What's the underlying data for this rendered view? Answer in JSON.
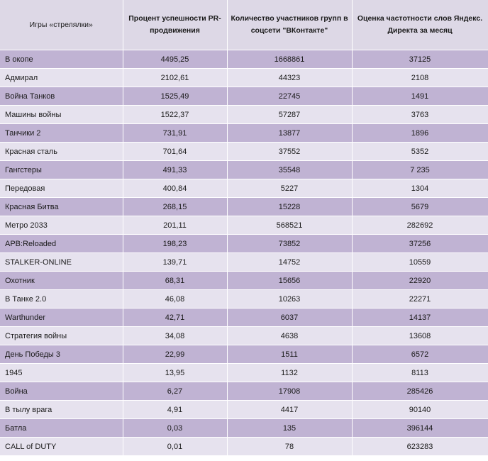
{
  "table": {
    "headers": [
      "Игры «стрелялки»",
      "Процент успешности PR-продвижения",
      "Количество участников групп в соцсети \"ВКонтакте\"",
      "Оценка частотности слов Яндекс. Директа за месяц"
    ],
    "rows": [
      [
        "В окопе",
        "4495,25",
        "1668861",
        "37125"
      ],
      [
        "Адмирал",
        "2102,61",
        "44323",
        "2108"
      ],
      [
        "Война Танков",
        "1525,49",
        "22745",
        "1491"
      ],
      [
        "Машины войны",
        "1522,37",
        "57287",
        "3763"
      ],
      [
        "Танчики 2",
        "731,91",
        "13877",
        "1896"
      ],
      [
        "Красная сталь",
        "701,64",
        "37552",
        "5352"
      ],
      [
        "Гангстеры",
        "491,33",
        "35548",
        "7 235"
      ],
      [
        "Передовая",
        "400,84",
        "5227",
        "1304"
      ],
      [
        "Красная Битва",
        "268,15",
        "15228",
        "5679"
      ],
      [
        "Метро 2033",
        "201,11",
        "568521",
        "282692"
      ],
      [
        "APB:Reloaded",
        "198,23",
        "73852",
        "37256"
      ],
      [
        "STALKER-ONLINE",
        "139,71",
        "14752",
        "10559"
      ],
      [
        "Охотник",
        "68,31",
        "15656",
        "22920"
      ],
      [
        "В Танке 2.0",
        "46,08",
        "10263",
        "22271"
      ],
      [
        "Warthunder",
        "42,71",
        "6037",
        "14137"
      ],
      [
        "Стратегия войны",
        "34,08",
        "4638",
        "13608"
      ],
      [
        "День Победы 3",
        "22,99",
        "1511",
        "6572"
      ],
      [
        "1945",
        "13,95",
        "1132",
        "8113"
      ],
      [
        "Война",
        "6,27",
        "17908",
        "285426"
      ],
      [
        "В тылу врага",
        "4,91",
        "4417",
        "90140"
      ],
      [
        "Батла",
        "0,03",
        "135",
        "396144"
      ],
      [
        "CALL of DUTY",
        "0,01",
        "78",
        "623283"
      ]
    ]
  },
  "colors": {
    "header": "#ddd8e6",
    "row_dark": "#c0b3d3",
    "row_light": "#e6e2ee"
  }
}
